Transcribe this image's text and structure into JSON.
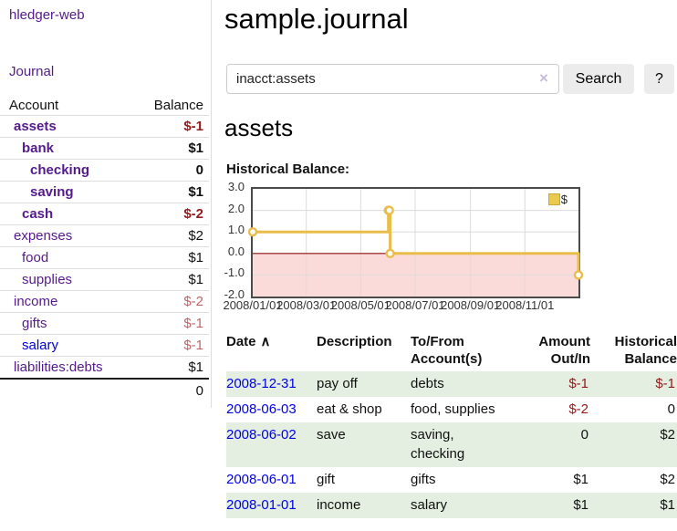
{
  "colors": {
    "link_visited_purple": "#551a8b",
    "link_blue": "#0000e6",
    "negative_strong": "#941a1c",
    "negative_soft": "#bd6668",
    "row_stripe_green": "#e4efe1",
    "chart_line_gold": "#e9bd4a",
    "chart_negative_fill": "#fbdada",
    "chart_zero_line": "#8f1010"
  },
  "sidebar": {
    "brand": "hledger-web",
    "nav_journal": "Journal",
    "account_header": "Account",
    "balance_header": "Balance",
    "accounts": [
      {
        "name": "assets",
        "depth": 1,
        "bold": true,
        "balance": "$-1",
        "balance_style": "neg-strong"
      },
      {
        "name": "bank",
        "depth": 2,
        "bold": true,
        "balance": "$1",
        "balance_style": "pos"
      },
      {
        "name": "checking",
        "depth": 3,
        "bold": true,
        "balance": "0",
        "balance_style": "pos"
      },
      {
        "name": "saving",
        "depth": 3,
        "bold": true,
        "balance": "$1",
        "balance_style": "pos"
      },
      {
        "name": "cash",
        "depth": 2,
        "bold": true,
        "balance": "$-2",
        "balance_style": "neg-strong"
      },
      {
        "name": "expenses",
        "depth": 1,
        "bold": false,
        "balance": "$2",
        "balance_style": "pos"
      },
      {
        "name": "food",
        "depth": 2,
        "bold": false,
        "balance": "$1",
        "balance_style": "pos"
      },
      {
        "name": "supplies",
        "depth": 2,
        "bold": false,
        "balance": "$1",
        "balance_style": "pos"
      },
      {
        "name": "income",
        "depth": 1,
        "bold": false,
        "balance": "$-2",
        "balance_style": "neg-soft"
      },
      {
        "name": "gifts",
        "depth": 2,
        "bold": false,
        "balance": "$-1",
        "balance_style": "neg-soft"
      },
      {
        "name": "salary",
        "depth": 2,
        "bold": false,
        "link_style": "unvisited",
        "balance": "$-1",
        "balance_style": "neg-soft"
      },
      {
        "name": "liabilities:debts",
        "depth": 1,
        "bold": false,
        "balance": "$1",
        "balance_style": "pos"
      }
    ],
    "total_balance": "0"
  },
  "header": {
    "title": "sample.journal"
  },
  "search": {
    "value": "inacct:assets",
    "clear_icon": "×",
    "button_label": "Search",
    "help_label": "?"
  },
  "account_page": {
    "heading": "assets",
    "chart_title": "Historical Balance:"
  },
  "chart_data": {
    "type": "line",
    "step": true,
    "title": "Historical Balance:",
    "series": [
      {
        "name": "$",
        "points": [
          [
            "2008-01-01",
            1
          ],
          [
            "2008-06-01",
            2
          ],
          [
            "2008-06-02",
            2
          ],
          [
            "2008-06-03",
            0
          ],
          [
            "2008-12-31",
            -1
          ]
        ]
      }
    ],
    "x_range": [
      "2008-01-01",
      "2008-12-31"
    ],
    "ylim": [
      -2,
      3
    ],
    "y_ticks": [
      3.0,
      2.0,
      1.0,
      0.0,
      -1.0,
      -2.0
    ],
    "x_tick_dates": [
      "2008-01-01",
      "2008-03-01",
      "2008-05-01",
      "2008-07-01",
      "2008-09-01",
      "2008-11-01"
    ],
    "x_tick_labels": [
      "2008/01/01",
      "2008/03/01",
      "2008/05/01",
      "2008/07/01",
      "2008/09/01",
      "2008/11/01"
    ],
    "grid": true,
    "legend_position": "top-right",
    "legend_label": "$",
    "negative_region_highlighted": true
  },
  "transactions": {
    "headers": {
      "date": "Date",
      "sort_icon": "∧",
      "description": "Description",
      "accounts": "To/From Account(s)",
      "amount": "Amount Out/In",
      "balance": "Historical Balance"
    },
    "rows": [
      {
        "date": "2008-12-31",
        "description": "pay off",
        "accounts": "debts",
        "amount": "$-1",
        "balance": "$-1"
      },
      {
        "date": "2008-06-03",
        "description": "eat & shop",
        "accounts": "food, supplies",
        "amount": "$-2",
        "balance": "0"
      },
      {
        "date": "2008-06-02",
        "description": "save",
        "accounts": "saving, checking",
        "amount": "0",
        "balance": "$2"
      },
      {
        "date": "2008-06-01",
        "description": "gift",
        "accounts": "gifts",
        "amount": "$1",
        "balance": "$2"
      },
      {
        "date": "2008-01-01",
        "description": "income",
        "accounts": "salary",
        "amount": "$1",
        "balance": "$1"
      }
    ]
  }
}
